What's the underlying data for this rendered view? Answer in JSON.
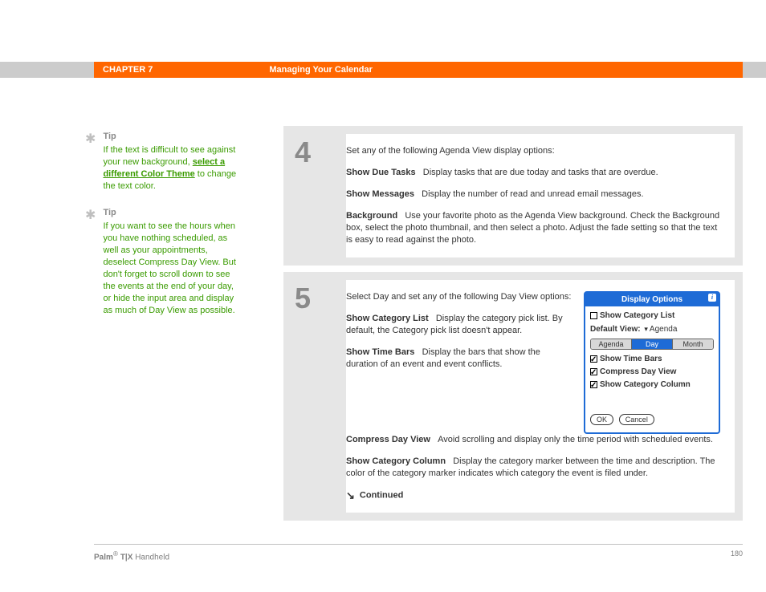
{
  "header": {
    "chapter": "CHAPTER 7",
    "title": "Managing Your Calendar"
  },
  "tips": [
    {
      "heading": "Tip",
      "pre": "If the text is difficult to see against your new background, ",
      "link": "select a different Color Theme",
      "post": " to change the text color."
    },
    {
      "heading": "Tip",
      "body": "If you want to see the hours when you have nothing scheduled, as well as your appointments, deselect Compress Day View. But don't forget to scroll down to see the events at the end of your day, or hide the input area and display as much of Day View as possible."
    }
  ],
  "step4": {
    "num": "4",
    "intro": "Set any of the following Agenda View display options:",
    "opts": [
      {
        "label": "Show Due Tasks",
        "desc": "Display tasks that are due today and tasks that are overdue."
      },
      {
        "label": "Show Messages",
        "desc": "Display the number of read and unread email messages."
      },
      {
        "label": "Background",
        "desc": "Use your favorite photo as the Agenda View background. Check the Background box, select the photo thumbnail, and then select a photo. Adjust the fade setting so that the text is easy to read against the photo."
      }
    ]
  },
  "step5": {
    "num": "5",
    "intro": "Select Day and set any of the following Day View options:",
    "opts_top": [
      {
        "label": "Show Category List",
        "desc": "Display the category pick list. By default, the Category pick list doesn't appear."
      },
      {
        "label": "Show Time Bars",
        "desc": "Display the bars that show the duration of an event and event conflicts."
      }
    ],
    "opts_bottom": [
      {
        "label": "Compress Day View",
        "desc": "Avoid scrolling and display only the time period with scheduled events."
      },
      {
        "label": "Show Category Column",
        "desc": "Display the category marker between the time and description. The color of the category marker indicates which category the event is filed under."
      }
    ],
    "continued": "Continued"
  },
  "dialog": {
    "title": "Display Options",
    "row1": "Show Category List",
    "default_label": "Default View:",
    "default_value": "Agenda",
    "tabs": [
      "Agenda",
      "Day",
      "Month"
    ],
    "checks": [
      {
        "c": true,
        "t": "Show Time Bars"
      },
      {
        "c": true,
        "t": "Compress Day View"
      },
      {
        "c": true,
        "t": "Show Category Column"
      }
    ],
    "ok": "OK",
    "cancel": "Cancel"
  },
  "footer": {
    "brand": "Palm",
    "model": "T|X",
    "desc": "Handheld",
    "page": "180"
  }
}
